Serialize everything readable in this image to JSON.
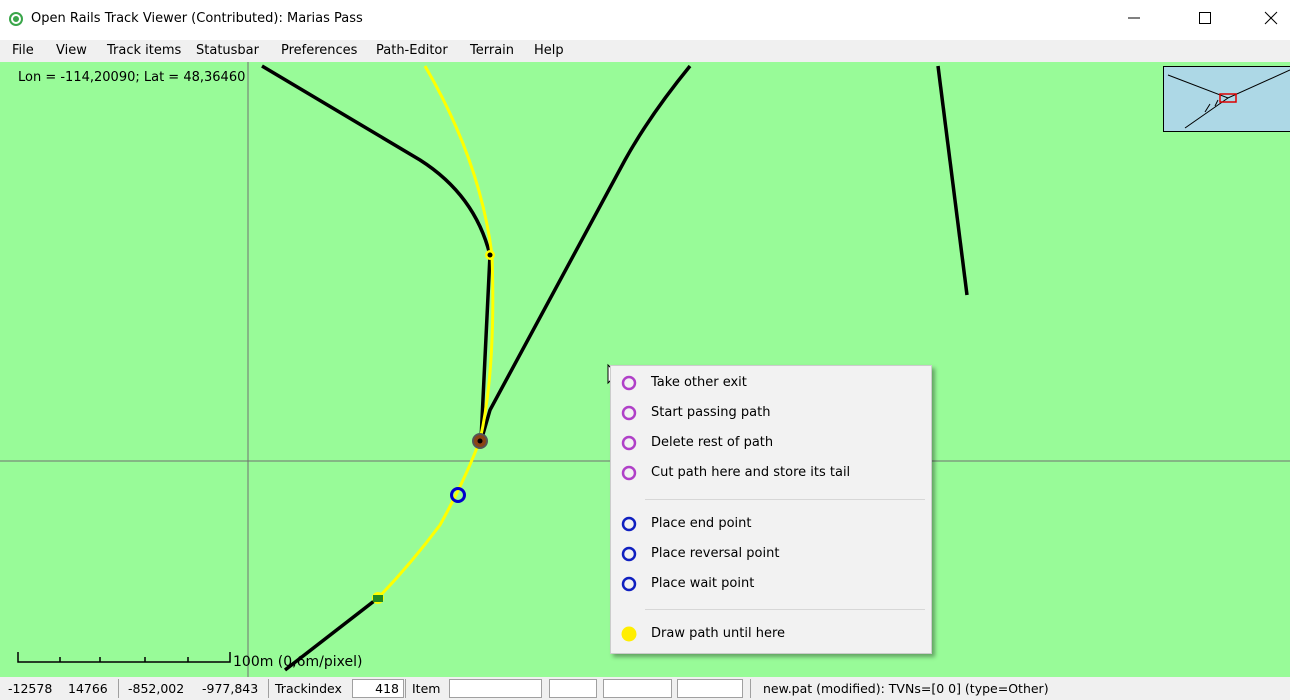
{
  "window": {
    "title": "Open Rails Track Viewer (Contributed): Marias Pass"
  },
  "menu": [
    "File",
    "View",
    "Track items",
    "Statusbar",
    "Preferences",
    "Path-Editor",
    "Terrain",
    "Help"
  ],
  "map": {
    "coordinates": "Lon = -114,20090; Lat = 48,36460",
    "scale_label": "100m (0,6m/pixel)"
  },
  "context_menu": {
    "groups": [
      [
        "Take other exit",
        "Start passing path",
        "Delete rest of path",
        "Cut path here and store its tail"
      ],
      [
        "Place end point",
        "Place reversal point",
        "Place wait point"
      ],
      [
        "Draw path until here"
      ]
    ]
  },
  "status_bar": {
    "x": "-12578",
    "z": "14766",
    "lon": "-852,002",
    "lat": "-977,843",
    "trackindex_label": "Trackindex",
    "trackindex": "418",
    "item_label": "Item",
    "path_info": "new.pat (modified): TVNs=[0 0] (type=Other)"
  }
}
